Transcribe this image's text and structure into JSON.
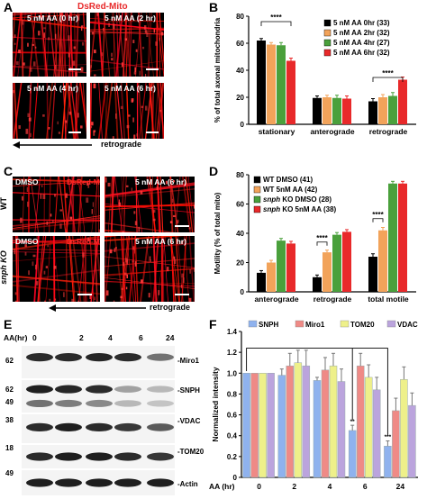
{
  "panelA": {
    "letter": "A",
    "header": "DsRed-Mito",
    "tiles": [
      "5 nM AA (0 hr)",
      "5 nM AA (2 hr)",
      "5 nM AA (4 hr)",
      "5 nM AA (6 hr)"
    ],
    "arrow_label": "retrograde"
  },
  "panelB": {
    "letter": "B",
    "significance": "****",
    "chart_data": {
      "type": "bar",
      "categories": [
        "stationary",
        "anterograde",
        "retrograde"
      ],
      "series": [
        {
          "name": "5 nM AA 0hr (33)",
          "values": [
            62,
            19.5,
            17
          ],
          "errors": [
            1.5,
            1.5,
            2
          ]
        },
        {
          "name": "5 nM AA 2hr (32)",
          "values": [
            59,
            20,
            20
          ],
          "errors": [
            1.5,
            1.5,
            2
          ]
        },
        {
          "name": "5 nM AA 4hr (27)",
          "values": [
            58.5,
            19.5,
            21
          ],
          "errors": [
            2,
            2,
            2.5
          ]
        },
        {
          "name": "5 nM AA 6hr (32)",
          "values": [
            47,
            19,
            33
          ],
          "errors": [
            2,
            2,
            2
          ]
        }
      ],
      "colors": [
        "#000000",
        "#f2a35a",
        "#4aa03c",
        "#e8292a"
      ],
      "ylabel": "% of total axonal mitochondria",
      "ylim": [
        0,
        80
      ],
      "yticks": [
        0,
        20,
        40,
        60,
        80
      ]
    }
  },
  "panelC": {
    "letter": "C",
    "rows": [
      "WT",
      "snph KO"
    ],
    "tiles": [
      "DMSO",
      "DsRed-Mito",
      "5 nM AA (6 hr)"
    ],
    "arrow_label": "retrograde"
  },
  "panelD": {
    "letter": "D",
    "significance": "****",
    "chart_data": {
      "type": "bar",
      "categories": [
        "anterograde",
        "retrograde",
        "total motile"
      ],
      "series": [
        {
          "name": "WT DMSO (41)",
          "values": [
            13,
            10,
            24
          ],
          "errors": [
            1.5,
            1.5,
            2
          ]
        },
        {
          "name": "WT 5nM AA (42)",
          "values": [
            20,
            27,
            42
          ],
          "errors": [
            1.5,
            1.5,
            2
          ]
        },
        {
          "name": "snph KO DMSO (28)",
          "values": [
            35,
            39,
            74
          ],
          "errors": [
            1.5,
            1.5,
            1.5
          ]
        },
        {
          "name": "snph KO 5nM AA (38)",
          "values": [
            33,
            41,
            74
          ],
          "errors": [
            1.5,
            1.5,
            1.5
          ]
        }
      ],
      "colors": [
        "#000000",
        "#f2a35a",
        "#4aa03c",
        "#e8292a"
      ],
      "ylabel": "Motility (% of total mito)",
      "ylim": [
        0,
        80
      ],
      "yticks": [
        0,
        20,
        40,
        60,
        80
      ]
    }
  },
  "panelE": {
    "letter": "E",
    "header": "AA(hr)",
    "lanes": [
      "0",
      "2",
      "4",
      "6",
      "24"
    ],
    "markers": [
      "62",
      "62",
      "49",
      "38",
      "18",
      "49"
    ],
    "bands": [
      "Miro1",
      "SNPH",
      "VDAC",
      "TOM20",
      "Actin"
    ]
  },
  "panelF": {
    "letter": "F",
    "significance": [
      "**",
      "***"
    ],
    "chart_data": {
      "type": "bar",
      "categories": [
        "0",
        "2",
        "4",
        "6",
        "24"
      ],
      "xlabel": "AA (hr)",
      "series": [
        {
          "name": "SNPH",
          "values": [
            1.0,
            0.98,
            0.93,
            0.45,
            0.3
          ],
          "errors": [
            0,
            0.06,
            0.03,
            0.05,
            0.05
          ]
        },
        {
          "name": "Miro1",
          "values": [
            1.0,
            1.07,
            1.03,
            1.07,
            0.64
          ],
          "errors": [
            0,
            0.12,
            0.12,
            0.12,
            0.12
          ]
        },
        {
          "name": "TOM20",
          "values": [
            1.0,
            1.1,
            1.07,
            0.96,
            0.94
          ],
          "errors": [
            0,
            0.12,
            0.12,
            0.12,
            0.12
          ]
        },
        {
          "name": "VDAC",
          "values": [
            1.0,
            1.07,
            0.92,
            0.84,
            0.69
          ],
          "errors": [
            0,
            0.15,
            0.12,
            0.12,
            0.12
          ]
        }
      ],
      "colors": [
        "#8fb2ee",
        "#ef8a86",
        "#eef08a",
        "#bba4dd"
      ],
      "ylabel": "Normalized intensity",
      "ylim": [
        0,
        1.4
      ],
      "yticks": [
        "0",
        "0.2",
        "0.4",
        "0.6",
        "0.8",
        "1.0",
        "1.2",
        "1.4"
      ]
    }
  }
}
